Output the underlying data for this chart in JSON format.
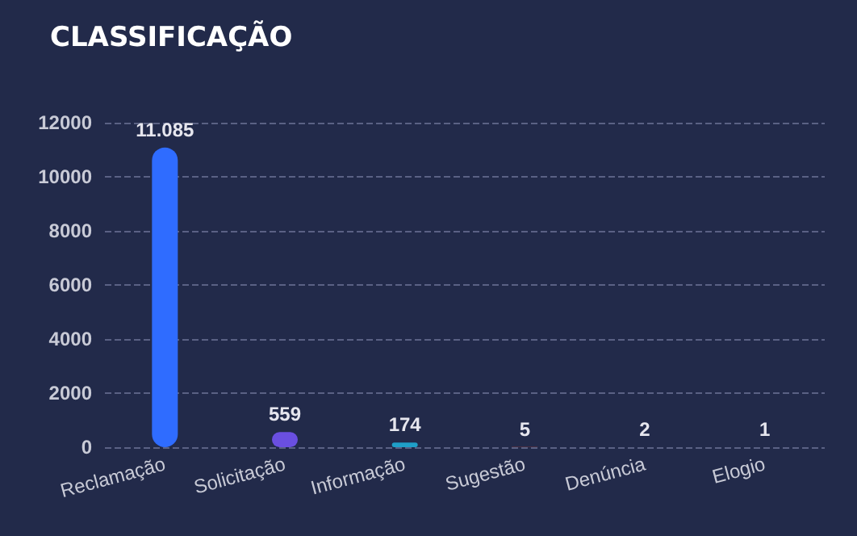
{
  "chart_data": {
    "type": "bar",
    "title": "CLASSIFICAÇÃO",
    "categories": [
      "Reclamação",
      "Solicitação",
      "Informação",
      "Sugestão",
      "Denúncia",
      "Elogio"
    ],
    "values": [
      11085,
      559,
      174,
      5,
      2,
      1
    ],
    "colors": [
      "#2f6cff",
      "#6a4fe0",
      "#1f9fc8",
      "#c0392b",
      "#b5651d",
      "#8e44ad"
    ],
    "value_labels": [
      "11.085",
      "559",
      "174",
      "5",
      "2",
      "1"
    ],
    "ylim": [
      0,
      12000
    ],
    "yticks": [
      0,
      2000,
      4000,
      6000,
      8000,
      10000,
      12000
    ],
    "grid": "y"
  }
}
